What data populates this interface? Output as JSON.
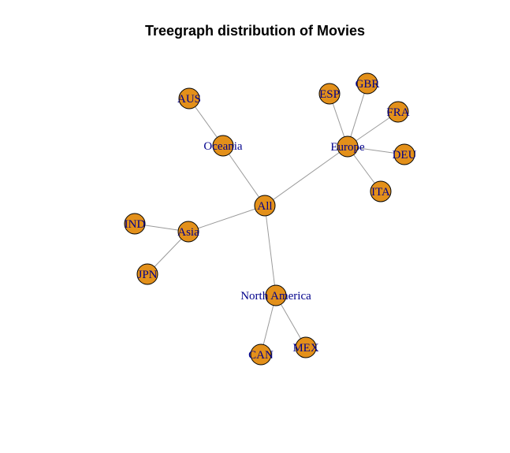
{
  "title": "Treegraph distribution of Movies",
  "colors": {
    "node_fill": "#e3901a",
    "node_stroke": "#000000",
    "edge": "#9a9a9a",
    "label": "#00008b"
  },
  "nodes": [
    {
      "id": "All",
      "label": "All"
    },
    {
      "id": "Oceania",
      "label": "Oceania"
    },
    {
      "id": "AUS",
      "label": "AUS"
    },
    {
      "id": "Europe",
      "label": "Europe"
    },
    {
      "id": "ESP",
      "label": "ESP"
    },
    {
      "id": "GBR",
      "label": "GBR"
    },
    {
      "id": "FRA",
      "label": "FRA"
    },
    {
      "id": "DEU",
      "label": "DEU"
    },
    {
      "id": "ITA",
      "label": "ITA"
    },
    {
      "id": "Asia",
      "label": "Asia"
    },
    {
      "id": "IND",
      "label": "IND"
    },
    {
      "id": "JPN",
      "label": "JPN"
    },
    {
      "id": "NorthAmerica",
      "label": "North America"
    },
    {
      "id": "CAN",
      "label": "CAN"
    },
    {
      "id": "MEX",
      "label": "MEX"
    }
  ],
  "edges": [
    [
      "All",
      "Oceania"
    ],
    [
      "Oceania",
      "AUS"
    ],
    [
      "All",
      "Europe"
    ],
    [
      "Europe",
      "ESP"
    ],
    [
      "Europe",
      "GBR"
    ],
    [
      "Europe",
      "FRA"
    ],
    [
      "Europe",
      "DEU"
    ],
    [
      "Europe",
      "ITA"
    ],
    [
      "All",
      "Asia"
    ],
    [
      "Asia",
      "IND"
    ],
    [
      "Asia",
      "JPN"
    ],
    [
      "All",
      "NorthAmerica"
    ],
    [
      "NorthAmerica",
      "CAN"
    ],
    [
      "NorthAmerica",
      "MEX"
    ]
  ]
}
